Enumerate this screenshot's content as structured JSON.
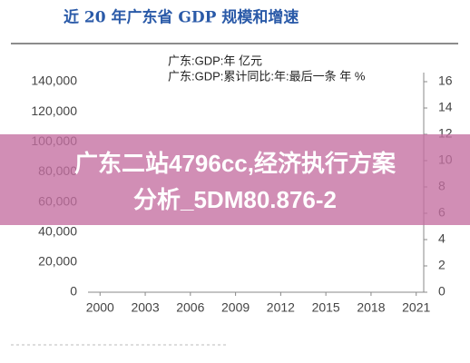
{
  "chart_data": {
    "type": "line",
    "title": "近 20 年广东省 GDP 规模和增速",
    "legend": [
      "广东:GDP:年 亿元",
      "广东:GDP:累计同比:年:最后一条 年 %"
    ],
    "xlim": [
      1999.2,
      2021.5
    ],
    "xticks": [
      2000,
      2003,
      2006,
      2009,
      2012,
      2015,
      2018,
      2021
    ],
    "ylim": [
      0,
      140000
    ],
    "yticks": [
      0,
      {
        "value": 20000,
        "label": "20,000"
      },
      {
        "value": 40000,
        "label": "40,000"
      },
      {
        "value": 60000,
        "label": "60,000"
      },
      {
        "value": 80000,
        "label": "80,000"
      },
      {
        "value": 100000,
        "label": "100,000"
      },
      {
        "value": 120000,
        "label": "120,000"
      },
      {
        "value": 140000,
        "label": "140,000"
      }
    ],
    "y2lim": [
      0,
      16
    ],
    "y2ticks": [
      0,
      2,
      4,
      6,
      8,
      10,
      12,
      14,
      16
    ]
  },
  "banner": {
    "lines": [
      "广东二站4796cc,经济执行方案",
      "分析_5DM80.876-2"
    ]
  }
}
